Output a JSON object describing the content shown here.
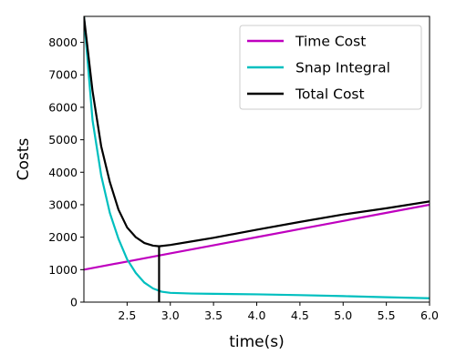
{
  "chart_data": {
    "type": "line",
    "title": "",
    "xlabel": "time(s)",
    "ylabel": "Costs",
    "xlim": [
      2.0,
      6.0
    ],
    "ylim": [
      0,
      8800
    ],
    "grid": false,
    "legend_position": "top-right",
    "x_ticks": [
      2.5,
      3.0,
      3.5,
      4.0,
      4.5,
      5.0,
      5.5,
      6.0
    ],
    "x_tick_labels": [
      "2.5",
      "3.0",
      "3.5",
      "4.0",
      "4.5",
      "5.0",
      "5.5",
      "6.0"
    ],
    "y_ticks": [
      0,
      1000,
      2000,
      3000,
      4000,
      5000,
      6000,
      7000,
      8000
    ],
    "y_tick_labels": [
      "0",
      "1000",
      "2000",
      "3000",
      "4000",
      "5000",
      "6000",
      "7000",
      "8000"
    ],
    "series": [
      {
        "name": "Time Cost",
        "color": "#bf00bf",
        "x": [
          2.0,
          2.5,
          3.0,
          3.5,
          4.0,
          4.5,
          5.0,
          5.5,
          6.0
        ],
        "y": [
          1000,
          1250,
          1500,
          1750,
          2000,
          2250,
          2500,
          2750,
          3000
        ]
      },
      {
        "name": "Snap Integral",
        "color": "#00bfbf",
        "x": [
          2.0,
          2.1,
          2.2,
          2.3,
          2.4,
          2.5,
          2.6,
          2.7,
          2.8,
          2.9,
          3.0,
          3.25,
          3.5,
          4.0,
          4.5,
          5.0,
          5.5,
          6.0
        ],
        "y": [
          8800,
          5600,
          3900,
          2750,
          1950,
          1320,
          900,
          600,
          420,
          320,
          285,
          265,
          255,
          240,
          215,
          185,
          150,
          120
        ]
      },
      {
        "name": "Total Cost",
        "color": "#000000",
        "x": [
          2.0,
          2.1,
          2.2,
          2.3,
          2.4,
          2.5,
          2.6,
          2.7,
          2.8,
          2.87,
          3.0,
          3.25,
          3.5,
          4.0,
          4.5,
          5.0,
          5.5,
          6.0
        ],
        "y": [
          8800,
          6500,
          4800,
          3700,
          2850,
          2300,
          2000,
          1820,
          1740,
          1720,
          1760,
          1870,
          1980,
          2230,
          2470,
          2700,
          2890,
          3100
        ]
      }
    ],
    "annotations": [
      {
        "type": "vertical_line",
        "x": 2.87,
        "y_from": 0,
        "y_to": 1720,
        "color": "#000000"
      }
    ]
  }
}
